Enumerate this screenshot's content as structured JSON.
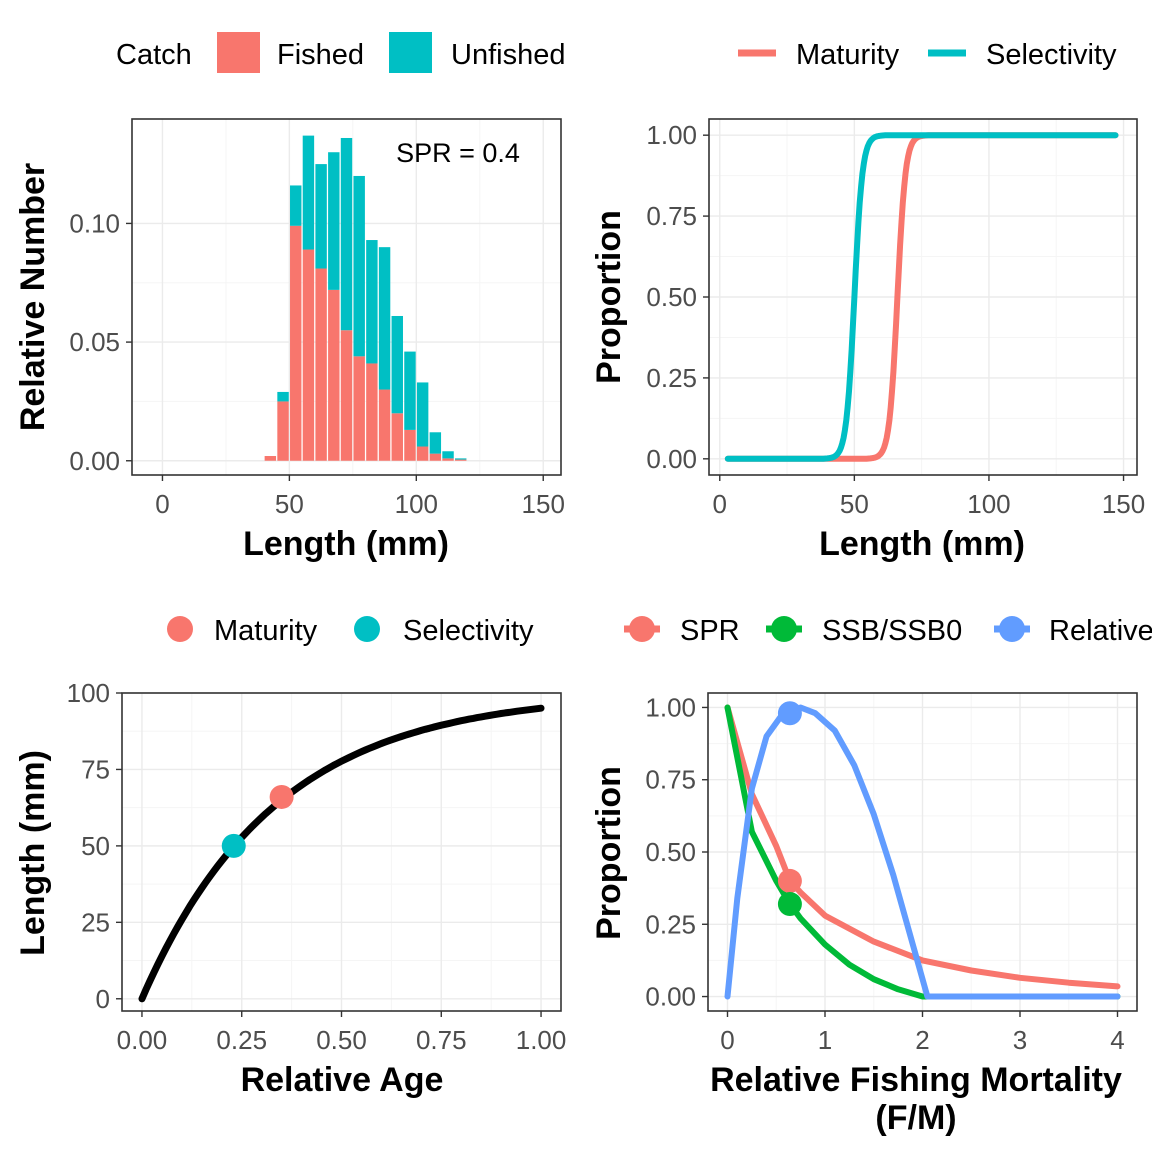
{
  "colors": {
    "red": "#F8766D",
    "teal": "#00BFC4",
    "green": "#00BA38",
    "blue": "#619CFF",
    "black": "#000000",
    "grid_major": "#EBEBEB",
    "grid_minor": "#F5F5F5",
    "panel_border": "#333333",
    "tick_text": "#4D4D4D"
  },
  "chart_data": [
    {
      "type": "bar",
      "position": "stacked",
      "xlabel": "Length (mm)",
      "ylabel": "Relative Number",
      "xlim": [
        -12,
        157
      ],
      "ylim": [
        -0.006,
        0.144
      ],
      "x_ticks": [
        {
          "v": 0,
          "label": "0"
        },
        {
          "v": 50,
          "label": "50"
        },
        {
          "v": 100,
          "label": "100"
        },
        {
          "v": 150,
          "label": "150"
        }
      ],
      "y_ticks": [
        {
          "v": 0,
          "label": "0.00"
        },
        {
          "v": 0.05,
          "label": "0.05"
        },
        {
          "v": 0.1,
          "label": "0.10"
        }
      ],
      "annotation": "SPR = 0.4",
      "legend": {
        "title": "Catch",
        "position": "top",
        "entries": [
          {
            "name": "Fished",
            "color": "#F8766D"
          },
          {
            "name": "Unfished",
            "color": "#00BFC4"
          }
        ]
      },
      "bin_width": 5,
      "bins_x": [
        42.5,
        47.5,
        52.5,
        57.5,
        62.5,
        67.5,
        72.5,
        77.5,
        82.5,
        87.5,
        92.5,
        97.5,
        102.5,
        107.5,
        112.5,
        117.5
      ],
      "series": [
        {
          "name": "Fished",
          "color": "#F8766D",
          "values": [
            0.002,
            0.025,
            0.099,
            0.089,
            0.081,
            0.072,
            0.055,
            0.044,
            0.041,
            0.03,
            0.02,
            0.013,
            0.006,
            0.003,
            0.001,
            0.0005
          ]
        },
        {
          "name": "Unfished",
          "color": "#00BFC4",
          "values": [
            0.0,
            0.004,
            0.017,
            0.048,
            0.044,
            0.058,
            0.081,
            0.076,
            0.052,
            0.06,
            0.041,
            0.033,
            0.027,
            0.009,
            0.003,
            0.0005
          ]
        }
      ]
    },
    {
      "type": "line",
      "xlabel": "Length (mm)",
      "ylabel": "Proportion",
      "xlim": [
        -4,
        155
      ],
      "ylim": [
        -0.05,
        1.05
      ],
      "x_ticks": [
        {
          "v": 0,
          "label": "0"
        },
        {
          "v": 50,
          "label": "50"
        },
        {
          "v": 100,
          "label": "100"
        },
        {
          "v": 150,
          "label": "150"
        }
      ],
      "y_ticks": [
        {
          "v": 0,
          "label": "0.00"
        },
        {
          "v": 0.25,
          "label": "0.25"
        },
        {
          "v": 0.5,
          "label": "0.50"
        },
        {
          "v": 0.75,
          "label": "0.75"
        },
        {
          "v": 1,
          "label": "1.00"
        }
      ],
      "legend": {
        "position": "top",
        "entries": [
          {
            "name": "Maturity",
            "color": "#F8766D"
          },
          {
            "name": "Selectivity",
            "color": "#00BFC4"
          }
        ]
      },
      "series": [
        {
          "name": "Maturity",
          "color": "#F8766D",
          "curve": "logistic",
          "l50": 66,
          "width": 1.5,
          "x_range": [
            3,
            147
          ]
        },
        {
          "name": "Selectivity",
          "color": "#00BFC4",
          "curve": "logistic",
          "l50": 50,
          "width": 1.5,
          "x_range": [
            3,
            147
          ]
        }
      ]
    },
    {
      "type": "line",
      "xlabel": "Relative Age",
      "ylabel": "Length (mm)",
      "xlim": [
        -0.05,
        1.05
      ],
      "ylim": [
        -4,
        100
      ],
      "x_ticks": [
        {
          "v": 0,
          "label": "0.00"
        },
        {
          "v": 0.25,
          "label": "0.25"
        },
        {
          "v": 0.5,
          "label": "0.50"
        },
        {
          "v": 0.75,
          "label": "0.75"
        },
        {
          "v": 1,
          "label": "1.00"
        }
      ],
      "y_ticks": [
        {
          "v": 0,
          "label": "0"
        },
        {
          "v": 25,
          "label": "25"
        },
        {
          "v": 50,
          "label": "50"
        },
        {
          "v": 75,
          "label": "75"
        },
        {
          "v": 100,
          "label": "100"
        }
      ],
      "legend": {
        "position": "top",
        "entries": [
          {
            "name": "Maturity",
            "color": "#F8766D"
          },
          {
            "name": "Selectivity",
            "color": "#00BFC4"
          }
        ]
      },
      "series": [
        {
          "name": "growth",
          "color": "#000000",
          "curve": "von_bertalanffy",
          "linf": 100,
          "k": 3.0,
          "x_range": [
            0,
            1
          ]
        }
      ],
      "points": [
        {
          "name": "Maturity",
          "color": "#F8766D",
          "x": 0.35,
          "y": 66
        },
        {
          "name": "Selectivity",
          "color": "#00BFC4",
          "x": 0.23,
          "y": 50
        }
      ]
    },
    {
      "type": "line",
      "xlabel": "Relative Fishing Mortality (F/M)",
      "ylabel": "Proportion",
      "xlim": [
        -0.2,
        4.2
      ],
      "ylim": [
        -0.05,
        1.05
      ],
      "x_ticks": [
        {
          "v": 0,
          "label": "0"
        },
        {
          "v": 1,
          "label": "1"
        },
        {
          "v": 2,
          "label": "2"
        },
        {
          "v": 3,
          "label": "3"
        },
        {
          "v": 4,
          "label": "4"
        }
      ],
      "y_ticks": [
        {
          "v": 0,
          "label": "0.00"
        },
        {
          "v": 0.25,
          "label": "0.25"
        },
        {
          "v": 0.5,
          "label": "0.50"
        },
        {
          "v": 0.75,
          "label": "0.75"
        },
        {
          "v": 1,
          "label": "1.00"
        }
      ],
      "legend": {
        "position": "top",
        "entries": [
          {
            "name": "SPR",
            "color": "#F8766D"
          },
          {
            "name": "SSB/SSB0",
            "color": "#00BA38"
          },
          {
            "name": "Relative",
            "color": "#619CFF"
          }
        ]
      },
      "series": [
        {
          "name": "SPR",
          "color": "#F8766D",
          "x": [
            0,
            0.25,
            0.5,
            0.64,
            0.75,
            1.0,
            1.5,
            2.0,
            2.5,
            3.0,
            3.5,
            4.0
          ],
          "y": [
            1.0,
            0.7,
            0.52,
            0.4,
            0.36,
            0.28,
            0.19,
            0.125,
            0.09,
            0.065,
            0.048,
            0.035
          ]
        },
        {
          "name": "SSB/SSB0",
          "color": "#00BA38",
          "x": [
            0,
            0.25,
            0.5,
            0.64,
            0.75,
            1.0,
            1.25,
            1.5,
            1.75,
            2.0,
            2.5,
            4.0
          ],
          "y": [
            1.0,
            0.57,
            0.4,
            0.32,
            0.27,
            0.18,
            0.11,
            0.06,
            0.025,
            0.0,
            0.0,
            0.0
          ]
        },
        {
          "name": "Relative",
          "color": "#619CFF",
          "x": [
            0,
            0.1,
            0.25,
            0.4,
            0.55,
            0.64,
            0.75,
            0.9,
            1.1,
            1.3,
            1.5,
            1.7,
            1.9,
            2.05,
            2.5,
            4.0
          ],
          "y": [
            0.0,
            0.34,
            0.72,
            0.9,
            0.97,
            0.98,
            1.0,
            0.98,
            0.92,
            0.8,
            0.63,
            0.42,
            0.18,
            0.0,
            0.0,
            0.0
          ]
        }
      ],
      "points": [
        {
          "name": "SPR",
          "color": "#F8766D",
          "x": 0.64,
          "y": 0.4
        },
        {
          "name": "SSB/SSB0",
          "color": "#00BA38",
          "x": 0.64,
          "y": 0.32
        },
        {
          "name": "Relative",
          "color": "#619CFF",
          "x": 0.64,
          "y": 0.98
        }
      ]
    }
  ]
}
